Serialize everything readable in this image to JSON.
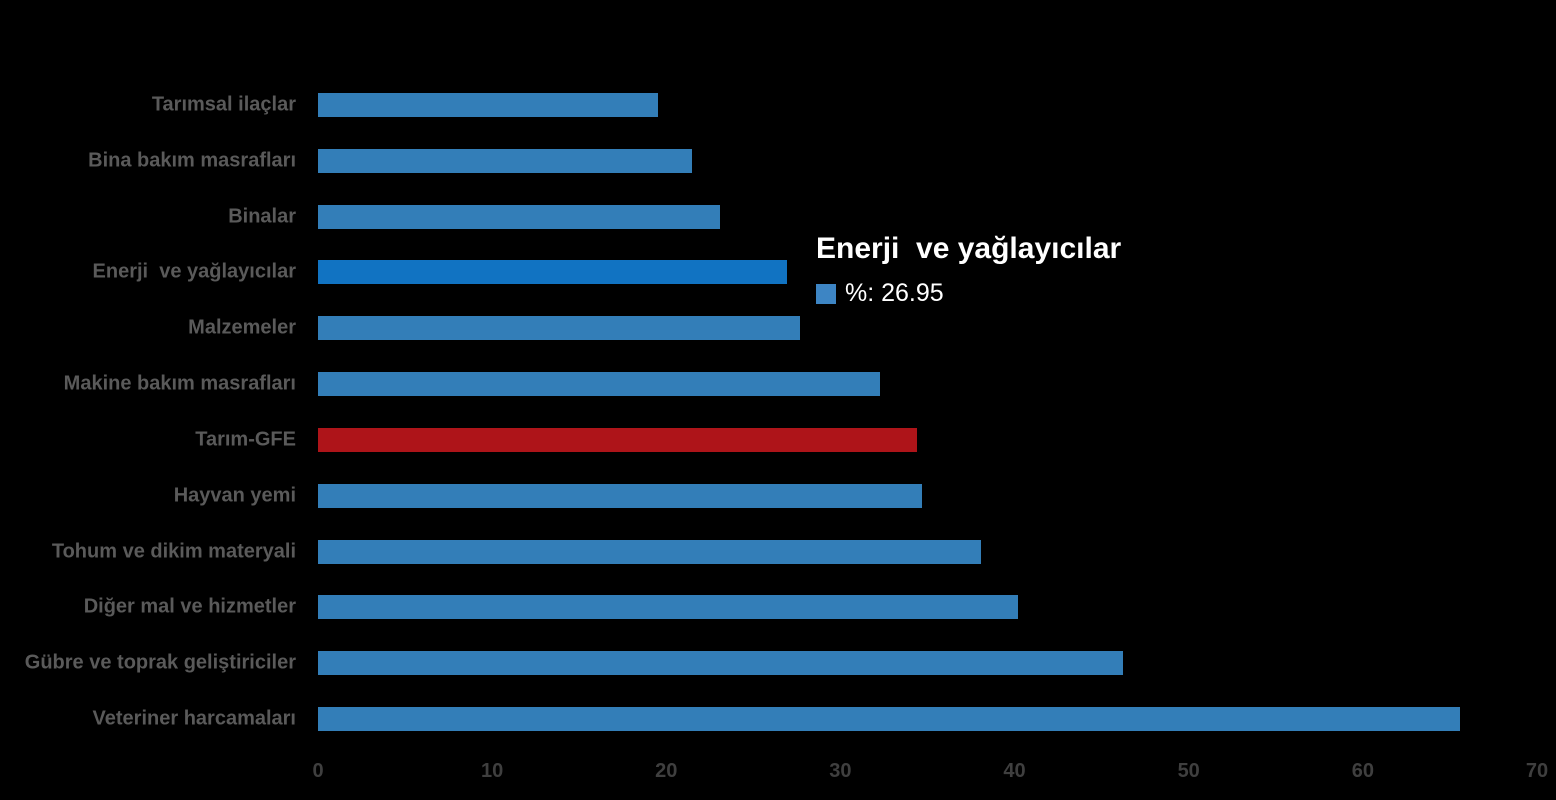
{
  "chart_data": {
    "type": "bar",
    "orientation": "horizontal",
    "title": "",
    "xlabel": "",
    "ylabel": "",
    "series_name": "%",
    "categories": [
      "Tarımsal ilaçlar",
      "Bina bakım masrafları",
      "Binalar",
      "Enerji  ve yağlayıcılar",
      "Malzemeler",
      "Makine bakım masrafları",
      "Tarım-GFE",
      "Hayvan yemi",
      "Tohum ve dikim materyali",
      "Diğer mal ve hizmetler",
      "Gübre ve toprak geliştiriciler",
      "Veteriner harcamaları"
    ],
    "values": [
      19.5,
      21.5,
      23.1,
      26.95,
      27.7,
      32.3,
      34.4,
      34.7,
      38.1,
      40.2,
      46.2,
      65.6
    ],
    "highlight_index": 3,
    "emphasis_index": 6,
    "xlim": [
      0,
      70
    ],
    "xticks": [
      "0",
      "10",
      "20",
      "30",
      "40",
      "50",
      "60",
      "70"
    ],
    "grid": false,
    "legend_position": "none"
  },
  "tooltip": {
    "title": "Enerji  ve yağlayıcılar",
    "value_label": "%: 26.95"
  },
  "colors": {
    "background": "#000000",
    "bar_default": "#337EB8",
    "bar_highlight": "#1173C2",
    "bar_emphasis": "#AE1419",
    "tooltip_swatch": "#3D85C4",
    "category_label": "#5A5A5A",
    "tick_label": "#3F3F3F",
    "tooltip_text": "#FFFFFF"
  }
}
